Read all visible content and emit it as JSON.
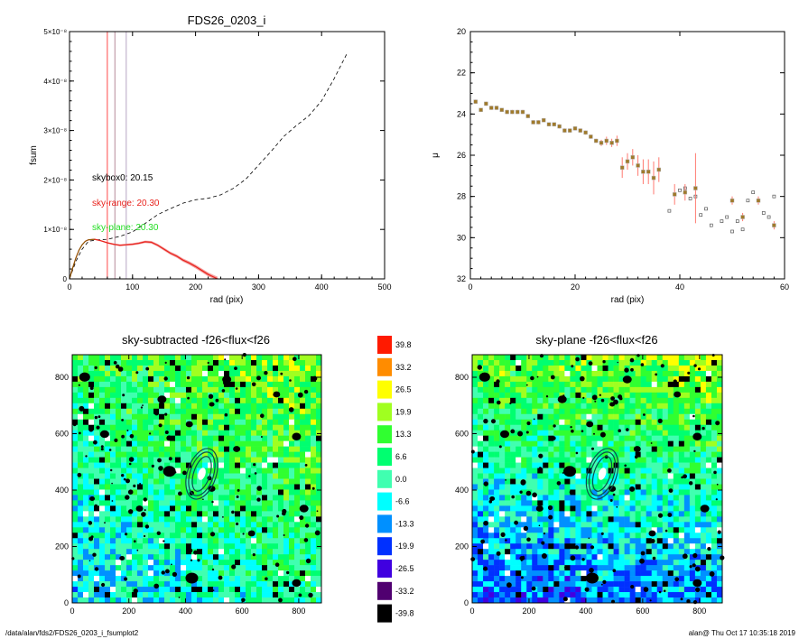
{
  "footer": {
    "path": "/data/alan/fds2/FDS26_0203_i_fsumplot2",
    "stamp": "alan@  Thu Oct 17 10:35:18 2019"
  },
  "colors": {
    "sky_range": "#e8221c",
    "sky_plane": "#22dd22",
    "skybox": "#000000",
    "error_bar": "#ff7a70",
    "point_fill": "#a07a2a",
    "point_edge": "#b0b0b0"
  },
  "chart_data": [
    {
      "type": "line",
      "title": "FDS26_0203_i",
      "xlabel": "rad (pix)",
      "ylabel": "fsum",
      "xlim": [
        0,
        500
      ],
      "ylim": [
        0,
        5e-08
      ],
      "xticks": [
        "0",
        "100",
        "200",
        "300",
        "400",
        "500"
      ],
      "yticks": [
        "0",
        "1×10⁻⁸",
        "2×10⁻⁸",
        "3×10⁻⁸",
        "4×10⁻⁸",
        "5×10⁻⁸"
      ],
      "vertical_lines": [
        {
          "x": 60,
          "color": "#ff4a4a"
        },
        {
          "x": 72,
          "color": "#b58a9a"
        },
        {
          "x": 90,
          "color": "#b8a6c4"
        }
      ],
      "annotations": [
        {
          "text": "skybox0: 20.15",
          "color": "#000000"
        },
        {
          "text": "sky-range: 20.30",
          "color": "#e8221c"
        },
        {
          "text": "sky-plane: 20.30",
          "color": "#22dd22"
        }
      ],
      "series": [
        {
          "style": "dashed",
          "x": [
            0,
            10,
            20,
            30,
            45,
            60,
            80,
            100,
            120,
            140,
            160,
            180,
            200,
            220,
            240,
            260,
            280,
            300,
            320,
            340,
            360,
            380,
            400,
            420,
            440
          ],
          "y": [
            0,
            3.5e-09,
            6e-09,
            7.6e-09,
            7.9e-09,
            8e-09,
            8.6e-09,
            9.5e-09,
            1.12e-08,
            1.3e-08,
            1.42e-08,
            1.53e-08,
            1.6e-08,
            1.63e-08,
            1.7e-08,
            1.83e-08,
            2.02e-08,
            2.3e-08,
            2.58e-08,
            2.88e-08,
            3.1e-08,
            3.3e-08,
            3.6e-08,
            4.05e-08,
            4.55e-08
          ]
        },
        {
          "style": "sky-range",
          "band": 4.5e-10,
          "x": [
            0,
            5,
            10,
            15,
            20,
            25,
            30,
            40,
            50,
            60,
            70,
            80,
            90,
            100,
            110,
            120,
            130,
            140,
            150,
            160,
            170,
            180,
            190,
            200,
            210,
            220,
            230,
            235
          ],
          "y": [
            0,
            2.2e-09,
            4.2e-09,
            5.8e-09,
            6.9e-09,
            7.6e-09,
            7.9e-09,
            8e-09,
            7.7e-09,
            7.3e-09,
            7e-09,
            6.8e-09,
            6.9e-09,
            7e-09,
            7.2e-09,
            7.5e-09,
            7.4e-09,
            6.8e-09,
            6e-09,
            5.2e-09,
            4.6e-09,
            3.8e-09,
            3.2e-09,
            2.5e-09,
            1.7e-09,
            9e-10,
            3e-10,
            0
          ]
        }
      ]
    },
    {
      "type": "scatter",
      "title": "",
      "xlabel": "rad (pix)",
      "ylabel": "μ",
      "xlim": [
        0,
        60
      ],
      "ylim": [
        32,
        20
      ],
      "xticks": [
        "0",
        "20",
        "40",
        "60"
      ],
      "yticks": [
        "20",
        "22",
        "24",
        "26",
        "28",
        "30",
        "32"
      ],
      "series": [
        {
          "name": "",
          "marker": "filled",
          "x": [
            1,
            2,
            3,
            4,
            5,
            6,
            7,
            8,
            9,
            10,
            11,
            12,
            13,
            14,
            15,
            16,
            17,
            18,
            19,
            20,
            21,
            22,
            23,
            24,
            25,
            26,
            27,
            28,
            29,
            30,
            31,
            32,
            33,
            34,
            35,
            36,
            39,
            41,
            43,
            50,
            52,
            55,
            58
          ],
          "y": [
            23.4,
            23.8,
            23.5,
            23.7,
            23.7,
            23.8,
            23.9,
            23.9,
            23.9,
            23.9,
            24.1,
            24.4,
            24.4,
            24.3,
            24.5,
            24.5,
            24.6,
            24.8,
            24.8,
            24.7,
            24.8,
            24.9,
            25.1,
            25.3,
            25.4,
            25.3,
            25.4,
            25.3,
            26.6,
            26.3,
            26.1,
            26.5,
            26.8,
            26.8,
            27.1,
            26.7,
            27.9,
            27.8,
            27.6,
            28.2,
            29.0,
            28.2,
            29.4
          ],
          "yerr": [
            0.1,
            0.1,
            0.1,
            0.1,
            0.1,
            0.1,
            0.1,
            0.1,
            0.1,
            0.1,
            0.1,
            0.1,
            0.1,
            0.1,
            0.1,
            0.1,
            0.1,
            0.1,
            0.1,
            0.1,
            0.1,
            0.1,
            0.1,
            0.1,
            0.15,
            0.2,
            0.2,
            0.25,
            0.5,
            0.4,
            0.4,
            0.5,
            0.6,
            0.6,
            0.8,
            0.6,
            0.5,
            0.4,
            1.7,
            0.2,
            0.2,
            0.2,
            0.2
          ]
        },
        {
          "name": "",
          "marker": "open",
          "x": [
            38,
            40,
            41,
            42,
            43,
            44,
            45,
            46,
            48,
            49,
            50,
            51,
            52,
            53,
            54,
            56,
            57,
            58
          ],
          "y": [
            28.7,
            27.7,
            27.6,
            28.1,
            28.0,
            28.9,
            28.6,
            29.4,
            29.2,
            29.0,
            29.7,
            29.2,
            29.6,
            28.2,
            27.8,
            28.8,
            29.0,
            28.0
          ]
        }
      ]
    },
    {
      "type": "heatmap",
      "title": "sky-subtracted -f26<flux<f26",
      "xlim": [
        0,
        880
      ],
      "ylim": [
        0,
        880
      ],
      "xticks": [
        "0",
        "200",
        "400",
        "600",
        "800"
      ],
      "yticks": [
        "0",
        "200",
        "400",
        "600",
        "800"
      ],
      "gradient": "left-right",
      "masked_color": "#000000"
    },
    {
      "type": "heatmap",
      "title": "sky-plane -f26<flux<f26",
      "xlim": [
        0,
        880
      ],
      "ylim": [
        0,
        880
      ],
      "xticks": [
        "0",
        "200",
        "400",
        "600",
        "800"
      ],
      "yticks": [
        "0",
        "200",
        "400",
        "600",
        "800"
      ],
      "gradient": "top-bottom",
      "masked_color": "#000000"
    }
  ],
  "colorbar": {
    "labels": [
      "39.8",
      "33.2",
      "26.5",
      "19.9",
      "13.3",
      "6.6",
      "0.0",
      "-6.6",
      "-13.3",
      "-19.9",
      "-26.5",
      "-33.2",
      "-39.8"
    ],
    "colors": [
      "#ff1a00",
      "#ff8c00",
      "#ffff00",
      "#a0ff20",
      "#30ff30",
      "#00ff70",
      "#40ffb0",
      "#00ffff",
      "#0090ff",
      "#0030ff",
      "#4000e0",
      "#500070",
      "#000000"
    ]
  }
}
